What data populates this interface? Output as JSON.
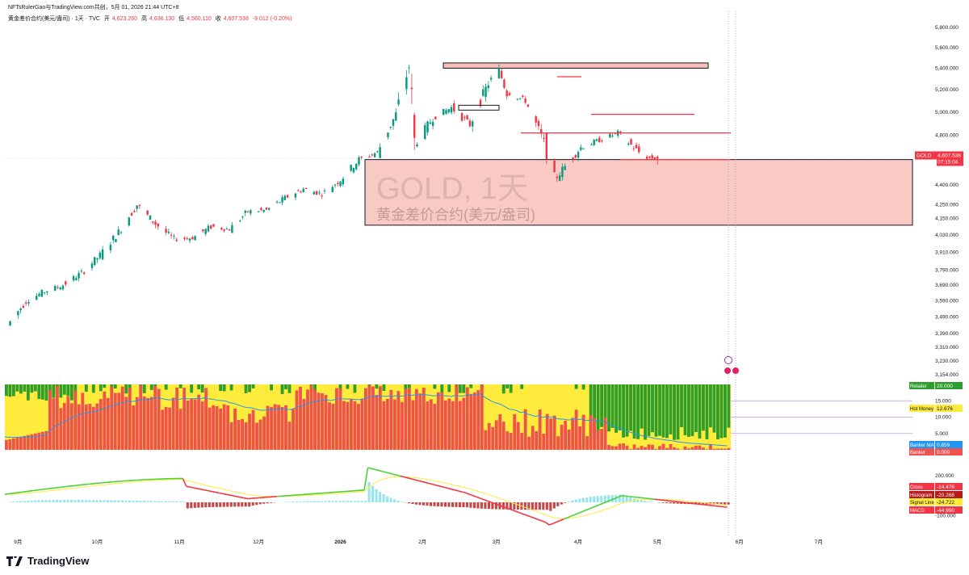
{
  "header": {
    "author_line": "NFTsRulerGao与TradingView.com共创，5月 01, 2026 21:44 UTC+8",
    "symbol_line": "黄金差价合约(美元/盎司) · 1天 · TVC",
    "ohlc": {
      "open_label": "开",
      "open": "4,623.260",
      "high_label": "高",
      "high": "4,636.130",
      "low_label": "低",
      "low": "4,560.110",
      "close_label": "收",
      "close": "4,607.538",
      "change": "-9.012 (-0.20%)"
    }
  },
  "watermark": {
    "line1": "GOLD, 1天",
    "line2": "黄金差价合约(美元/盎司)"
  },
  "price_badge": {
    "symbol": "GOLD",
    "price": "4,607.538",
    "countdown": "07:15:04"
  },
  "colors": {
    "up": "#089981",
    "down": "#f23645",
    "zone_fill": "#f8bfb8",
    "banker": "#ef5350",
    "retailer": "#2e9e2e",
    "hot_money": "#ffeb3b",
    "banker_ma": "#2196f3",
    "macd_green": "#4cd137",
    "macd_red": "#f23645",
    "signal": "#ffeb3b"
  },
  "indicator_badges": {
    "retailer": {
      "label": "Retailer",
      "value": "20.000"
    },
    "hot_money": {
      "label": "Hot Money",
      "value": "12.676"
    },
    "banker_ma": {
      "label": "Banker MA",
      "value": "0.859"
    },
    "banker": {
      "label": "Banker",
      "value": "0.000"
    },
    "cross": {
      "label": "Cross",
      "value": "-14.476"
    },
    "histogram": {
      "label": "Histogram",
      "value": "-20.268"
    },
    "signal_line": {
      "label": "Signal Line",
      "value": "-24.722"
    },
    "macd": {
      "label": "MACD",
      "value": "-44.990"
    }
  },
  "footer": {
    "brand": "TradingView"
  },
  "chart_data": {
    "type": "candlestick",
    "symbol": "GOLD",
    "interval": "1天",
    "price_axis_ticks": [
      "5,800.000",
      "5,600.000",
      "5,400.000",
      "5,200.000",
      "5,000.000",
      "4,800.000",
      "4,400.000",
      "4,250.000",
      "4,150.000",
      "4,030.000",
      "3,910.000",
      "3,790.000",
      "3,690.000",
      "3,590.000",
      "3,490.000",
      "3,390.000",
      "3,310.000",
      "3,230.000",
      "3,154.000"
    ],
    "indicator_axis_ticks": [
      "15.000",
      "10.000",
      "5.000"
    ],
    "macd_axis_ticks": [
      "200.000",
      "-100.000"
    ],
    "time_axis_labels": [
      "9月",
      "10月",
      "11月",
      "12月",
      "2026",
      "2月",
      "3月",
      "4月",
      "5月",
      "6月",
      "7月"
    ],
    "candles_sampled": [
      {
        "date": "2025-08-29",
        "o": 3410,
        "h": 3450,
        "l": 3400,
        "c": 3440
      },
      {
        "date": "2025-09-05",
        "o": 3440,
        "h": 3600,
        "l": 3430,
        "c": 3590
      },
      {
        "date": "2025-09-12",
        "o": 3590,
        "h": 3660,
        "l": 3580,
        "c": 3650
      },
      {
        "date": "2025-09-19",
        "o": 3650,
        "h": 3700,
        "l": 3620,
        "c": 3690
      },
      {
        "date": "2025-09-26",
        "o": 3690,
        "h": 3780,
        "l": 3680,
        "c": 3770
      },
      {
        "date": "2025-10-03",
        "o": 3770,
        "h": 3900,
        "l": 3760,
        "c": 3890
      },
      {
        "date": "2025-10-10",
        "o": 3890,
        "h": 4060,
        "l": 3880,
        "c": 4050
      },
      {
        "date": "2025-10-17",
        "o": 4050,
        "h": 4380,
        "l": 4040,
        "c": 4250
      },
      {
        "date": "2025-10-24",
        "o": 4250,
        "h": 4270,
        "l": 4000,
        "c": 4110
      },
      {
        "date": "2025-10-31",
        "o": 4110,
        "h": 4130,
        "l": 3950,
        "c": 4000
      },
      {
        "date": "2025-11-07",
        "o": 4000,
        "h": 4080,
        "l": 3960,
        "c": 4010
      },
      {
        "date": "2025-11-14",
        "o": 4010,
        "h": 4240,
        "l": 4000,
        "c": 4090
      },
      {
        "date": "2025-11-21",
        "o": 4090,
        "h": 4150,
        "l": 4030,
        "c": 4070
      },
      {
        "date": "2025-11-28",
        "o": 4070,
        "h": 4230,
        "l": 4060,
        "c": 4200
      },
      {
        "date": "2025-12-05",
        "o": 4200,
        "h": 4260,
        "l": 4180,
        "c": 4210
      },
      {
        "date": "2025-12-12",
        "o": 4210,
        "h": 4340,
        "l": 4200,
        "c": 4300
      },
      {
        "date": "2025-12-19",
        "o": 4300,
        "h": 4400,
        "l": 4290,
        "c": 4370
      },
      {
        "date": "2025-12-26",
        "o": 4370,
        "h": 4550,
        "l": 4300,
        "c": 4330
      },
      {
        "date": "2026-01-02",
        "o": 4330,
        "h": 4450,
        "l": 4320,
        "c": 4440
      },
      {
        "date": "2026-01-09",
        "o": 4440,
        "h": 4620,
        "l": 4430,
        "c": 4600
      },
      {
        "date": "2026-01-16",
        "o": 4600,
        "h": 4720,
        "l": 4590,
        "c": 4660
      },
      {
        "date": "2026-01-23",
        "o": 4660,
        "h": 5000,
        "l": 4650,
        "c": 4980
      },
      {
        "date": "2026-01-28",
        "o": 4980,
        "h": 5600,
        "l": 4970,
        "c": 5420
      },
      {
        "date": "2026-01-30",
        "o": 5420,
        "h": 5450,
        "l": 4500,
        "c": 4720
      },
      {
        "date": "2026-02-06",
        "o": 4720,
        "h": 5000,
        "l": 4650,
        "c": 4950
      },
      {
        "date": "2026-02-13",
        "o": 4950,
        "h": 5100,
        "l": 4900,
        "c": 5040
      },
      {
        "date": "2026-02-20",
        "o": 5040,
        "h": 5100,
        "l": 4870,
        "c": 4890
      },
      {
        "date": "2026-02-27",
        "o": 4890,
        "h": 5280,
        "l": 4880,
        "c": 5260
      },
      {
        "date": "2026-03-03",
        "o": 5260,
        "h": 5420,
        "l": 5240,
        "c": 5380
      },
      {
        "date": "2026-03-06",
        "o": 5380,
        "h": 5400,
        "l": 5150,
        "c": 5180
      },
      {
        "date": "2026-03-13",
        "o": 5180,
        "h": 5240,
        "l": 5060,
        "c": 5100
      },
      {
        "date": "2026-03-20",
        "o": 5100,
        "h": 5110,
        "l": 4720,
        "c": 4740
      },
      {
        "date": "2026-03-24",
        "o": 4740,
        "h": 4760,
        "l": 4150,
        "c": 4440
      },
      {
        "date": "2026-03-27",
        "o": 4440,
        "h": 4560,
        "l": 4300,
        "c": 4520
      },
      {
        "date": "2026-04-03",
        "o": 4520,
        "h": 4740,
        "l": 4500,
        "c": 4700
      },
      {
        "date": "2026-04-10",
        "o": 4700,
        "h": 4800,
        "l": 4650,
        "c": 4760
      },
      {
        "date": "2026-04-17",
        "o": 4760,
        "h": 4880,
        "l": 4730,
        "c": 4820
      },
      {
        "date": "2026-04-22",
        "o": 4820,
        "h": 4830,
        "l": 4700,
        "c": 4720
      },
      {
        "date": "2026-04-27",
        "o": 4720,
        "h": 4740,
        "l": 4600,
        "c": 4620
      },
      {
        "date": "2026-05-01",
        "o": 4623.26,
        "h": 4636.13,
        "l": 4560.11,
        "c": 4607.538
      }
    ],
    "zones": [
      {
        "name": "top-resistance-zone",
        "from": 5400,
        "to": 5450
      },
      {
        "name": "support-zone",
        "from": 4100,
        "to": 4600
      }
    ],
    "ylim_log": [
      3154,
      5800
    ]
  }
}
